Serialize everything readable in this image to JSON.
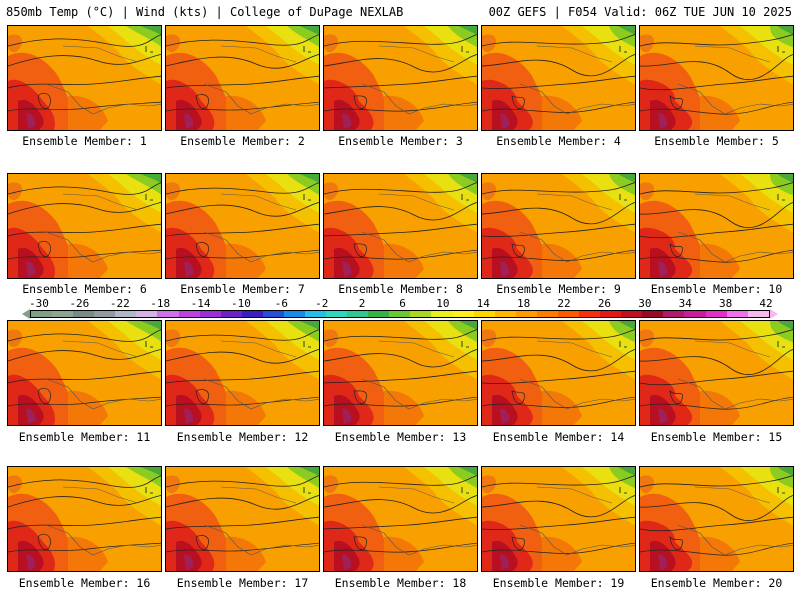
{
  "header": {
    "left": "850mb Temp (°C) | Wind (kts) | College of DuPage NEXLAB",
    "right": "00Z GEFS | F054 Valid: 06Z TUE JUN 10 2025"
  },
  "panels": [
    "Ensemble Member: 1",
    "Ensemble Member: 2",
    "Ensemble Member: 3",
    "Ensemble Member: 4",
    "Ensemble Member: 5",
    "Ensemble Member: 6",
    "Ensemble Member: 7",
    "Ensemble Member: 8",
    "Ensemble Member: 9",
    "Ensemble Member: 10",
    "Ensemble Member: 11",
    "Ensemble Member: 12",
    "Ensemble Member: 13",
    "Ensemble Member: 14",
    "Ensemble Member: 15",
    "Ensemble Member: 16",
    "Ensemble Member: 17",
    "Ensemble Member: 18",
    "Ensemble Member: 19",
    "Ensemble Member: 20"
  ],
  "colorbar": {
    "ticks": [
      "-30",
      "-26",
      "-22",
      "-18",
      "-14",
      "-10",
      "-6",
      "-2",
      "2",
      "6",
      "10",
      "14",
      "18",
      "22",
      "26",
      "30",
      "34",
      "38",
      "42"
    ],
    "colors": [
      "#7f9f86",
      "#8da58f",
      "#7b8a84",
      "#909aa0",
      "#b0b8c8",
      "#d6b0e8",
      "#cf72e6",
      "#c040e0",
      "#9c2ed8",
      "#6e20c8",
      "#3a1ec0",
      "#2450d8",
      "#1a8ae8",
      "#22c0e8",
      "#2cd8c0",
      "#30c890",
      "#38b048",
      "#6cc830",
      "#aad820",
      "#e8f020",
      "#fff020",
      "#ffd800",
      "#ffb800",
      "#ff9a00",
      "#ff7a00",
      "#ff5a00",
      "#f43010",
      "#e01818",
      "#c01020",
      "#9a0a28",
      "#b01a6a",
      "#c81c9a",
      "#e030c8",
      "#f070e8",
      "#f6b8ee"
    ]
  }
}
